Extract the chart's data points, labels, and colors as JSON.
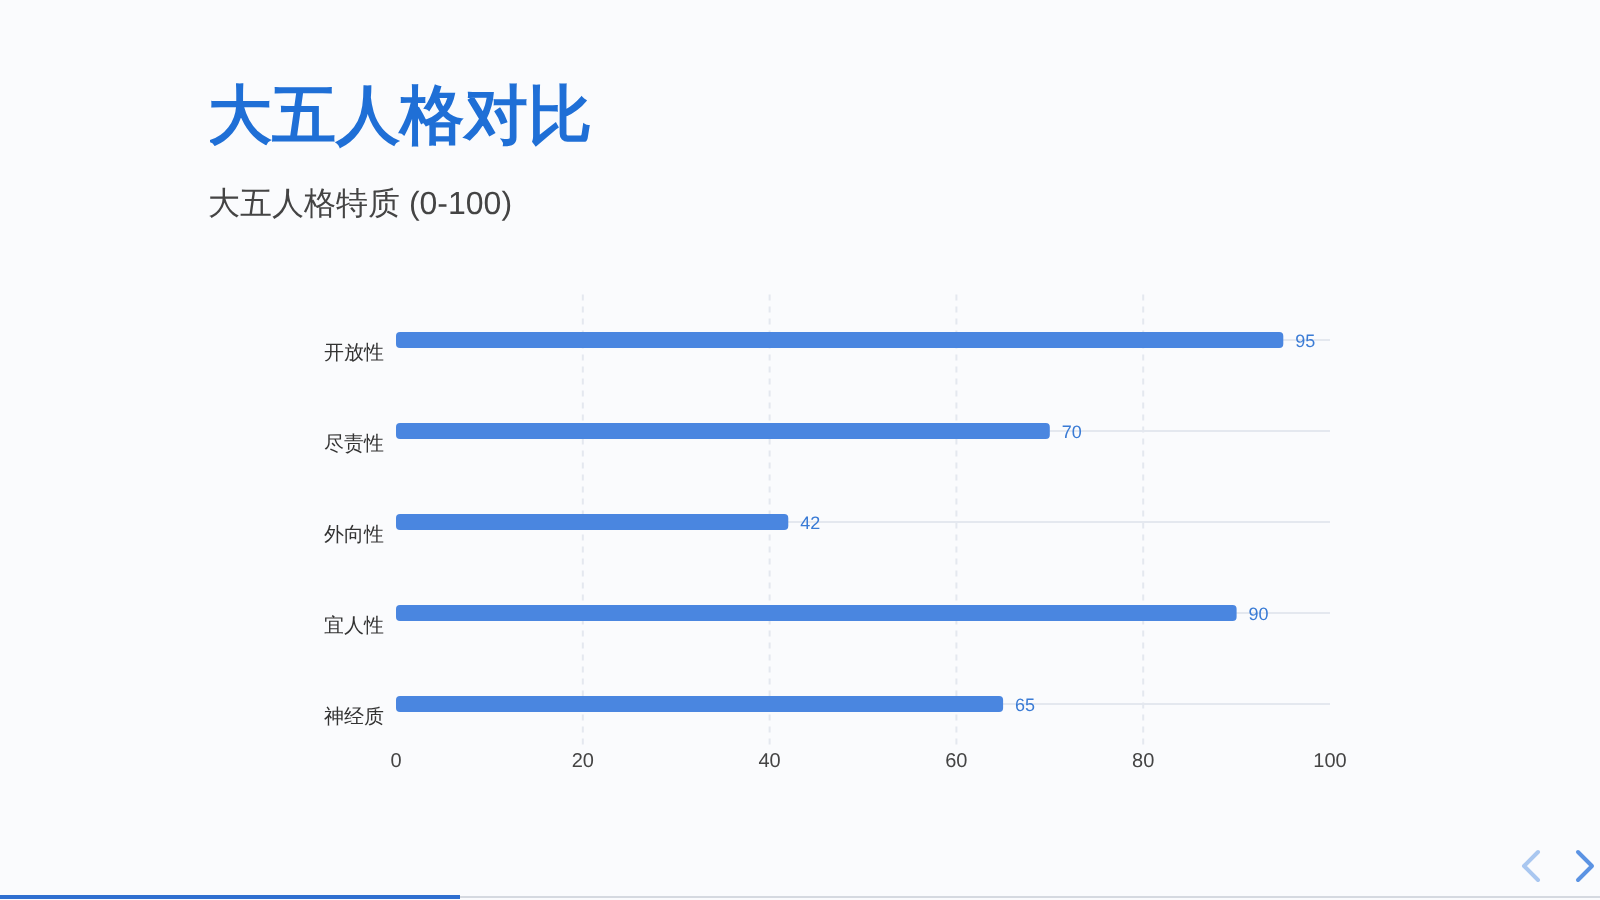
{
  "chart_data": {
    "type": "bar",
    "orientation": "horizontal",
    "title": "大五人格对比",
    "subtitle": "大五人格特质 (0-100)",
    "categories": [
      "开放性",
      "尽责性",
      "外向性",
      "宜人性",
      "神经质"
    ],
    "values": [
      95,
      70,
      42,
      90,
      65
    ],
    "color": "#4a86e0",
    "xlim": [
      0,
      100
    ],
    "xticks": [
      0,
      20,
      40,
      60,
      80,
      100
    ],
    "grid": true,
    "data_labels": true
  }
}
